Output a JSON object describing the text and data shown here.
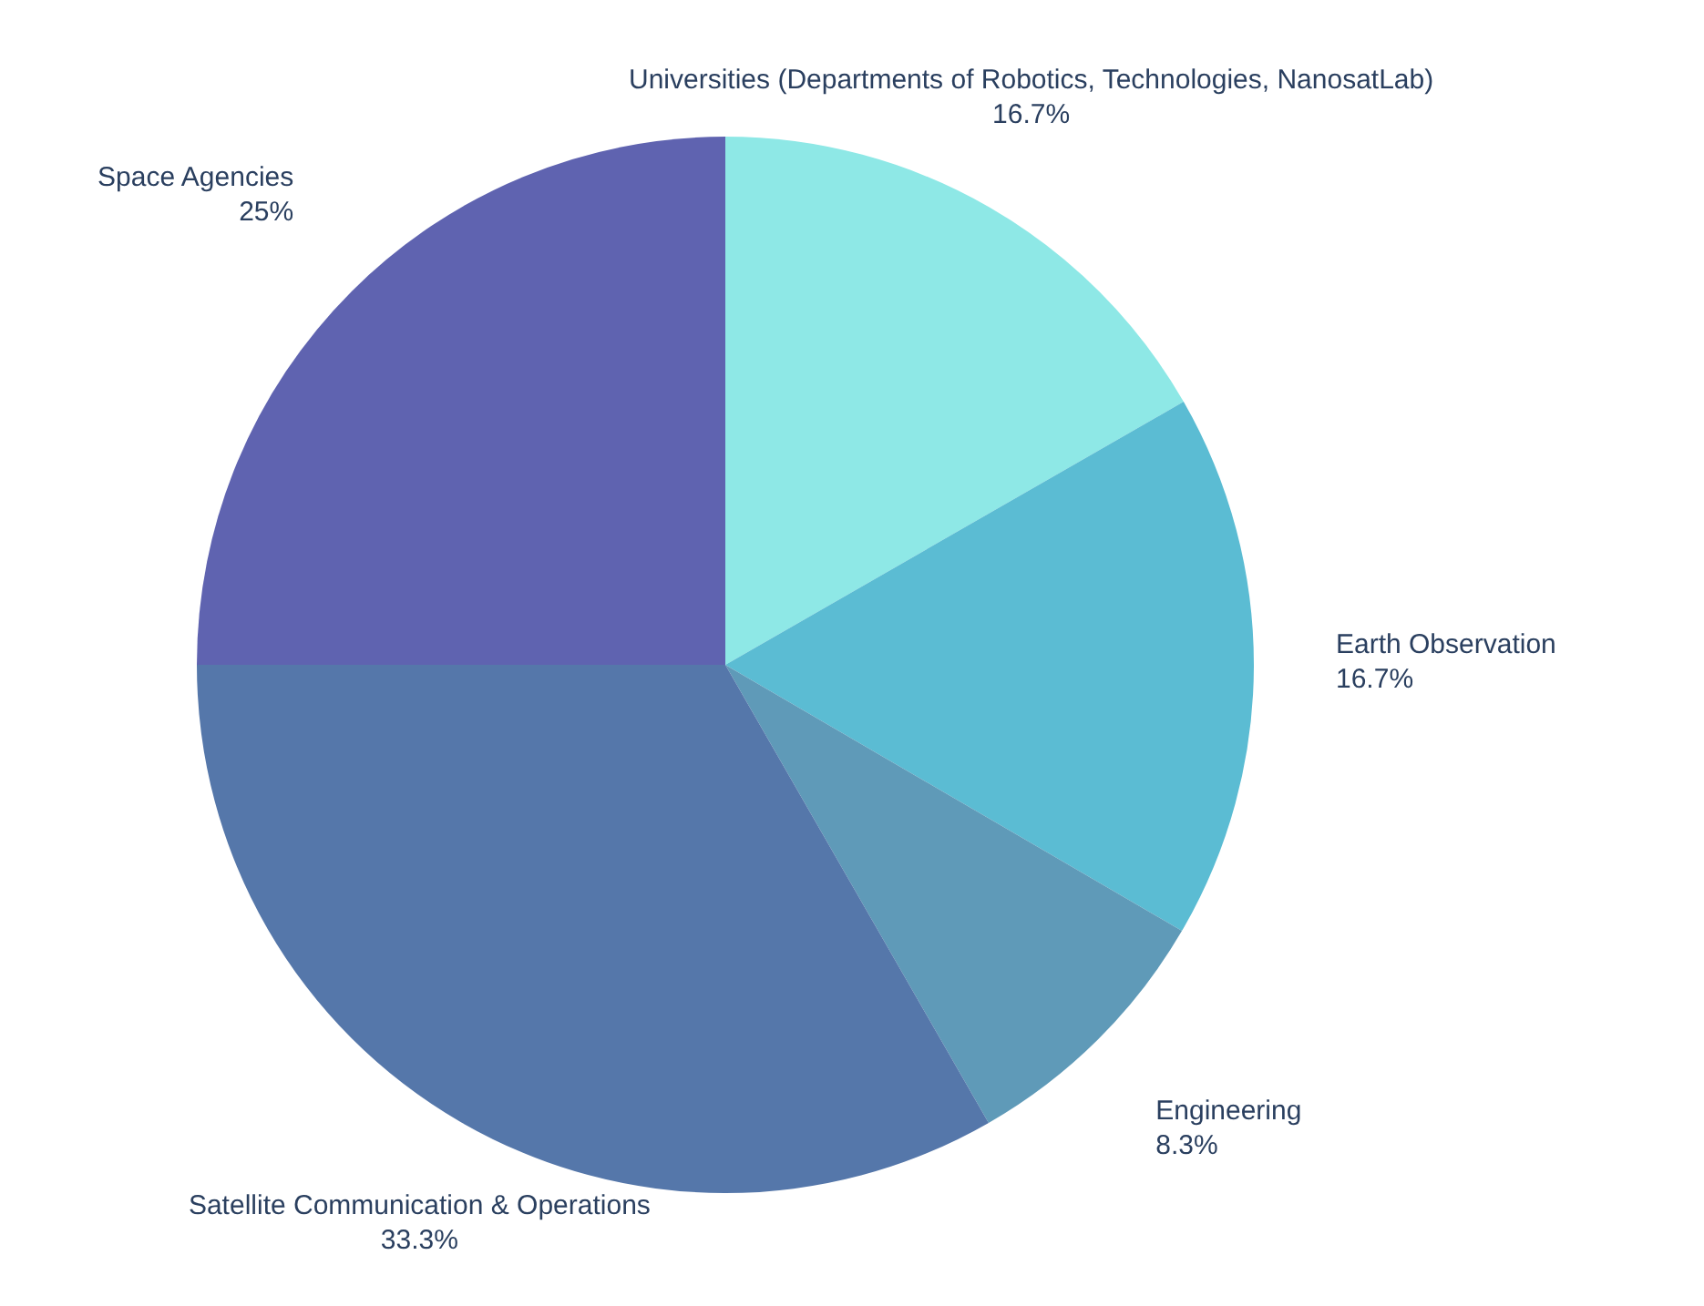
{
  "chart_data": {
    "type": "pie",
    "categories": [
      "Universities (Departments of Robotics, Technologies, NanosatLab)",
      "Earth Observation",
      "Engineering",
      "Satellite Communication & Operations",
      "Space Agencies"
    ],
    "values": [
      16.7,
      16.7,
      8.3,
      33.3,
      25
    ],
    "value_labels": [
      "16.7%",
      "16.7%",
      "8.3%",
      "33.3%",
      "25%"
    ],
    "colors": [
      "#8ee8e6",
      "#5bbcd3",
      "#5f9ab8",
      "#5577aa",
      "#5f63b0"
    ],
    "legend": false
  }
}
